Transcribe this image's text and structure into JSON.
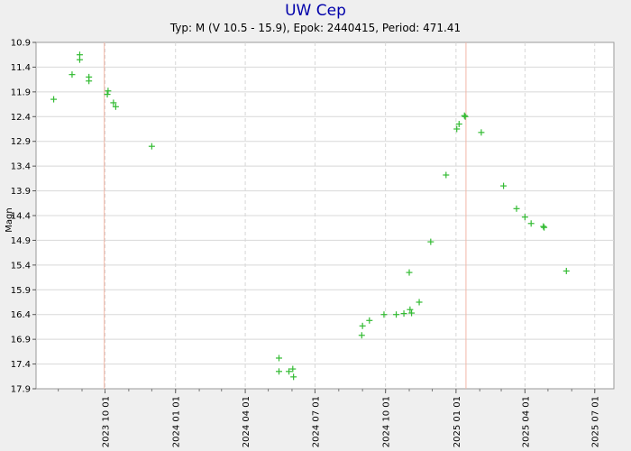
{
  "chart_data": {
    "type": "scatter",
    "title": "UW Cep",
    "subtitle": "Typ: M (V 10.5 - 15.9), Epok: 2440415, Period: 471.41",
    "ylabel": "Magn",
    "xlabel": "",
    "y_inverted": true,
    "ylim": [
      10.9,
      17.9
    ],
    "xlim": [
      "2023-07-03",
      "2025-07-26"
    ],
    "y_ticks": [
      "10.9",
      "11.4",
      "11.9",
      "12.4",
      "12.9",
      "13.4",
      "13.9",
      "14.4",
      "14.9",
      "15.4",
      "15.9",
      "16.4",
      "16.9",
      "17.4",
      "17.9"
    ],
    "x_ticks": [
      {
        "date": "2023-10-01",
        "label": "2023 10 01"
      },
      {
        "date": "2024-01-01",
        "label": "2024 01 01"
      },
      {
        "date": "2024-04-01",
        "label": "2024 04 01"
      },
      {
        "date": "2024-07-01",
        "label": "2024 07 01"
      },
      {
        "date": "2024-10-01",
        "label": "2024 10 01"
      },
      {
        "date": "2025-01-01",
        "label": "2025 01 01"
      },
      {
        "date": "2025-04-01",
        "label": "2025 04 01"
      },
      {
        "date": "2025-07-01",
        "label": "2025 07 01"
      }
    ],
    "max_lines": [
      "2023-09-30",
      "2025-01-14"
    ],
    "grid": true,
    "colors": {
      "points": "#33bb33",
      "max_line": "#f2b8a8",
      "title": "#0000aa",
      "grid": "#d8d8d8"
    },
    "series": [
      {
        "points": [
          {
            "x": "2023-07-26",
            "y": 12.05
          },
          {
            "x": "2023-08-19",
            "y": 11.55
          },
          {
            "x": "2023-08-29",
            "y": 11.15
          },
          {
            "x": "2023-08-29",
            "y": 11.25
          },
          {
            "x": "2023-09-10",
            "y": 11.6
          },
          {
            "x": "2023-09-10",
            "y": 11.68
          },
          {
            "x": "2023-10-04",
            "y": 11.95
          },
          {
            "x": "2023-10-05",
            "y": 11.88
          },
          {
            "x": "2023-10-12",
            "y": 12.12
          },
          {
            "x": "2023-10-15",
            "y": 12.2
          },
          {
            "x": "2023-12-01",
            "y": 13.0
          },
          {
            "x": "2024-05-15",
            "y": 17.28
          },
          {
            "x": "2024-05-15",
            "y": 17.55
          },
          {
            "x": "2024-05-28",
            "y": 17.55
          },
          {
            "x": "2024-06-02",
            "y": 17.5
          },
          {
            "x": "2024-06-03",
            "y": 17.66
          },
          {
            "x": "2024-08-31",
            "y": 16.82
          },
          {
            "x": "2024-09-01",
            "y": 16.63
          },
          {
            "x": "2024-09-10",
            "y": 16.52
          },
          {
            "x": "2024-09-29",
            "y": 16.4
          },
          {
            "x": "2024-10-15",
            "y": 16.4
          },
          {
            "x": "2024-10-25",
            "y": 16.38
          },
          {
            "x": "2024-11-01",
            "y": 15.55
          },
          {
            "x": "2024-11-02",
            "y": 16.3
          },
          {
            "x": "2024-11-04",
            "y": 16.37
          },
          {
            "x": "2024-11-14",
            "y": 16.15
          },
          {
            "x": "2024-11-29",
            "y": 14.93
          },
          {
            "x": "2024-12-19",
            "y": 13.58
          },
          {
            "x": "2025-01-02",
            "y": 12.65
          },
          {
            "x": "2025-01-05",
            "y": 12.55
          },
          {
            "x": "2025-01-12",
            "y": 12.38
          },
          {
            "x": "2025-01-13",
            "y": 12.4
          },
          {
            "x": "2025-02-03",
            "y": 12.72
          },
          {
            "x": "2025-03-04",
            "y": 13.8
          },
          {
            "x": "2025-03-21",
            "y": 14.26
          },
          {
            "x": "2025-04-01",
            "y": 14.43
          },
          {
            "x": "2025-04-09",
            "y": 14.56
          },
          {
            "x": "2025-04-25",
            "y": 14.62
          },
          {
            "x": "2025-04-26",
            "y": 14.64
          },
          {
            "x": "2025-05-25",
            "y": 15.52
          }
        ]
      }
    ]
  }
}
